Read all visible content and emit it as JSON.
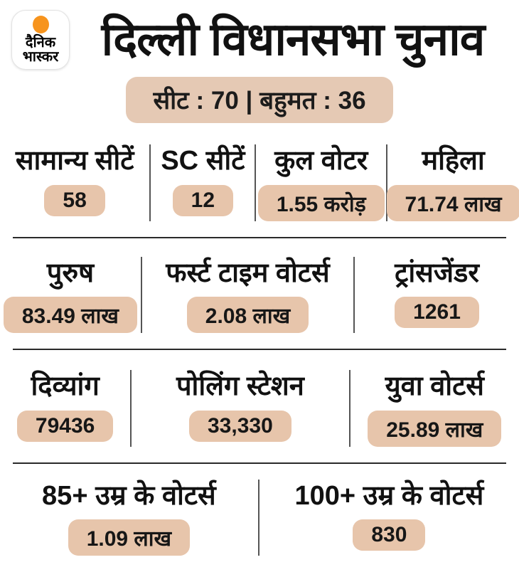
{
  "colors": {
    "badge-bg": "#e7c5ab",
    "banner-bg": "#e5c9b4",
    "orange": "#f7941d",
    "ink": "#1a1a1a"
  },
  "header": {
    "logo": {
      "line1": "दैनिक",
      "line2": "भास्कर"
    },
    "title": "दिल्ली विधानसभा चुनाव"
  },
  "banner": {
    "text": "सीट : 70 | बहुमत : 36"
  },
  "stats_rows": [
    {
      "cells": [
        {
          "label": "सामान्य सीटें",
          "value": "58"
        },
        {
          "label": "SC सीटें",
          "value": "12"
        },
        {
          "label": "कुल वोटर",
          "value": "1.55 करोड़"
        },
        {
          "label": "महिला",
          "value": "71.74 लाख"
        }
      ]
    },
    {
      "cells": [
        {
          "label": "पुरुष",
          "value": "83.49 लाख"
        },
        {
          "label": "फर्स्ट टाइम वोटर्स",
          "value": "2.08 लाख"
        },
        {
          "label": "ट्रांसजेंडर",
          "value": "1261"
        }
      ]
    },
    {
      "cells": [
        {
          "label": "दिव्यांग",
          "value": "79436"
        },
        {
          "label": "पोलिंग स्टेशन",
          "value": "33,330"
        },
        {
          "label": "युवा वोटर्स",
          "value": "25.89 लाख"
        }
      ]
    },
    {
      "cells": [
        {
          "label": "85+ उम्र के वोटर्स",
          "value": "1.09 लाख"
        },
        {
          "label": "100+ उम्र के वोटर्स",
          "value": "830"
        }
      ]
    }
  ],
  "chart_data": {
    "type": "table",
    "title": "दिल्ली विधानसभा चुनाव",
    "subtitle": "सीट : 70 | बहुमत : 36",
    "total_seats": 70,
    "majority_mark": 36,
    "rows": [
      {
        "label": "सामान्य सीटें",
        "value": "58"
      },
      {
        "label": "SC सीटें",
        "value": "12"
      },
      {
        "label": "कुल वोटर",
        "value": "1.55 करोड़"
      },
      {
        "label": "महिला",
        "value": "71.74 लाख"
      },
      {
        "label": "पुरुष",
        "value": "83.49 लाख"
      },
      {
        "label": "फर्स्ट टाइम वोटर्स",
        "value": "2.08 लाख"
      },
      {
        "label": "ट्रांसजेंडर",
        "value": "1261"
      },
      {
        "label": "दिव्यांग",
        "value": "79436"
      },
      {
        "label": "पोलिंग स्टेशन",
        "value": "33,330"
      },
      {
        "label": "युवा वोटर्स",
        "value": "25.89 लाख"
      },
      {
        "label": "85+ उम्र के वोटर्स",
        "value": "1.09 लाख"
      },
      {
        "label": "100+ उम्र के वोटर्स",
        "value": "830"
      }
    ]
  }
}
